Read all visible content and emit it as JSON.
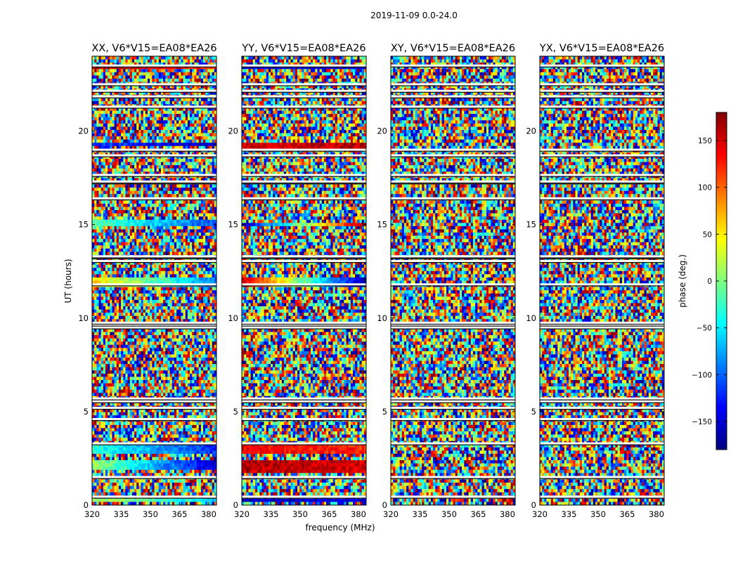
{
  "chart_data": {
    "type": "heatmap",
    "suptitle": "2019-11-09 0.0-24.0",
    "xlabel": "frequency (MHz)",
    "ylabel": "UT (hours)",
    "xlim": [
      320,
      384
    ],
    "ylim": [
      0,
      24
    ],
    "xticks": [
      320,
      335,
      350,
      365,
      380
    ],
    "yticks": [
      0,
      5,
      10,
      15,
      20
    ],
    "colorbar": {
      "label": "phase (deg.)",
      "range": [
        -180,
        180
      ],
      "ticks": [
        -150,
        -100,
        -50,
        0,
        50,
        100,
        150
      ],
      "tick_labels": [
        "−150",
        "−100",
        "−50",
        "0",
        "50",
        "100",
        "150"
      ],
      "colormap": [
        "#00007f",
        "#0000ff",
        "#007fff",
        "#00ffff",
        "#7fff7f",
        "#ffff00",
        "#ff7f00",
        "#ff0000",
        "#7f0000"
      ]
    },
    "flagged_hours": [
      0.45,
      1.5,
      3.3,
      4.6,
      5.2,
      5.55,
      5.7,
      9.5,
      9.65,
      9.75,
      11.8,
      13.05,
      13.25,
      13.3,
      16.4,
      17.25,
      17.3,
      17.65,
      18.7,
      19.0,
      21.3,
      21.85,
      22.15,
      22.5,
      23.5
    ],
    "panels": [
      {
        "title": "XX, V6*V15=EA08*EA26",
        "coherent_bands": [
          {
            "from": 0.1,
            "to": 0.4,
            "phase_start": 20,
            "phase_end": -60
          },
          {
            "from": 1.9,
            "to": 2.35,
            "phase_start": 10,
            "phase_end": -150
          },
          {
            "from": 2.8,
            "to": 3.2,
            "phase_start": -30,
            "phase_end": -120
          },
          {
            "from": 11.6,
            "to": 12.1,
            "phase_start": 60,
            "phase_end": -90
          },
          {
            "from": 14.9,
            "to": 15.2,
            "phase_start": -10,
            "phase_end": -110
          },
          {
            "from": 19.2,
            "to": 19.3,
            "phase_start": -110,
            "phase_end": -160
          },
          {
            "from": 23.3,
            "to": 23.45,
            "phase_start": 170,
            "phase_end": 120
          }
        ]
      },
      {
        "title": "YY, V6*V15=EA08*EA26",
        "coherent_bands": [
          {
            "from": 0.1,
            "to": 0.4,
            "phase_start": -160,
            "phase_end": -150
          },
          {
            "from": 1.7,
            "to": 2.35,
            "phase_start": 160,
            "phase_end": 150
          },
          {
            "from": 2.8,
            "to": 3.3,
            "phase_start": 140,
            "phase_end": 120
          },
          {
            "from": 11.6,
            "to": 12.1,
            "phase_start": 150,
            "phase_end": -170
          },
          {
            "from": 14.9,
            "to": 15.1,
            "phase_start": -160,
            "phase_end": 170
          },
          {
            "from": 19.1,
            "to": 19.3,
            "phase_start": 150,
            "phase_end": 160
          },
          {
            "from": 23.3,
            "to": 23.45,
            "phase_start": -150,
            "phase_end": -150
          }
        ]
      },
      {
        "title": "XY, V6*V15=EA08*EA26",
        "coherent_bands": []
      },
      {
        "title": "YX, V6*V15=EA08*EA26",
        "coherent_bands": []
      }
    ]
  }
}
